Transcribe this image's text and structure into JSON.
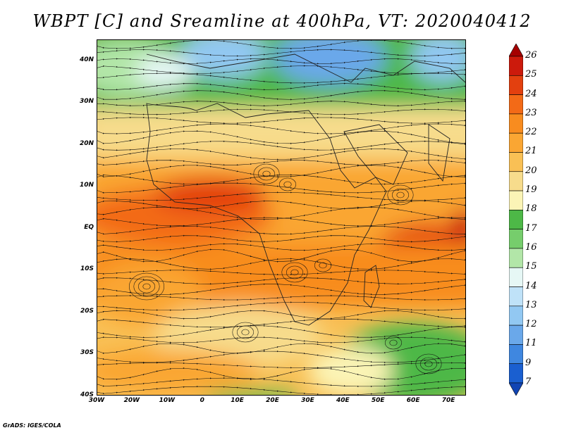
{
  "title": "WBPT [C] and Sreamline at 400hPa, VT: 2020040412",
  "footer": "GrADS: IGES/COLA",
  "map": {
    "lon_range": [
      -30,
      75
    ],
    "lat_range": [
      -40,
      45
    ],
    "lat_labels": [
      "40N",
      "30N",
      "20N",
      "10N",
      "EQ",
      "10S",
      "20S",
      "30S",
      "40S"
    ],
    "lat_values": [
      40,
      30,
      20,
      10,
      0,
      -10,
      -20,
      -30,
      -40
    ],
    "lon_labels": [
      "30W",
      "20W",
      "10W",
      "0",
      "10E",
      "20E",
      "30E",
      "40E",
      "50E",
      "60E",
      "70E"
    ],
    "lon_values": [
      -30,
      -20,
      -10,
      0,
      10,
      20,
      30,
      40,
      50,
      60,
      70
    ]
  },
  "colorbar": {
    "labels": [
      "26",
      "25",
      "24",
      "23",
      "22",
      "21",
      "20",
      "19",
      "18",
      "17",
      "16",
      "15",
      "14",
      "13",
      "12",
      "11",
      "9",
      "7"
    ],
    "colors": [
      "#a50000",
      "#cc1a0c",
      "#e3400f",
      "#f36a17",
      "#f88c1f",
      "#faa633",
      "#f9c055",
      "#f7dc8c",
      "#fbf4b6",
      "#4db847",
      "#76cd6c",
      "#b2e6a8",
      "#e6f7f5",
      "#bfe2f8",
      "#92c8f2",
      "#6aa8ea",
      "#3f87e0",
      "#1a5fd0",
      "#1145b4"
    ]
  }
}
